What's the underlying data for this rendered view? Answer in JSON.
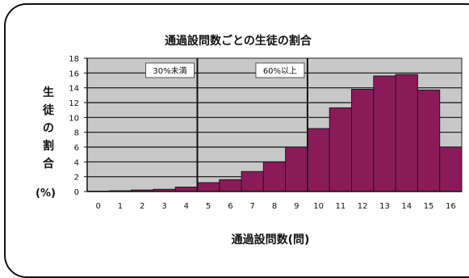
{
  "chart_data": {
    "type": "bar",
    "title": "通過設問数ごとの生徒の割合",
    "xlabel": "通過設問数(問)",
    "ylabel_chars": [
      "生",
      "徒",
      "の",
      "割",
      "合",
      "(%)"
    ],
    "categories": [
      "0",
      "1",
      "2",
      "3",
      "4",
      "5",
      "6",
      "7",
      "8",
      "9",
      "10",
      "11",
      "12",
      "13",
      "14",
      "15",
      "16"
    ],
    "values": [
      0.05,
      0.1,
      0.2,
      0.3,
      0.6,
      1.2,
      1.6,
      2.7,
      4.0,
      6.0,
      8.5,
      11.3,
      13.8,
      15.6,
      15.8,
      13.7,
      6.0
    ],
    "ylim": [
      0,
      18
    ],
    "yticks": [
      0,
      2,
      4,
      6,
      8,
      10,
      12,
      14,
      16,
      18
    ],
    "grid": true,
    "bar_color": "#8b1a5a",
    "plot_background": "#c8c8c8",
    "annotations": [
      {
        "text": "30%未満",
        "boundary_after_category": "4"
      },
      {
        "text": "60%以上",
        "boundary_after_category": "9"
      }
    ]
  }
}
